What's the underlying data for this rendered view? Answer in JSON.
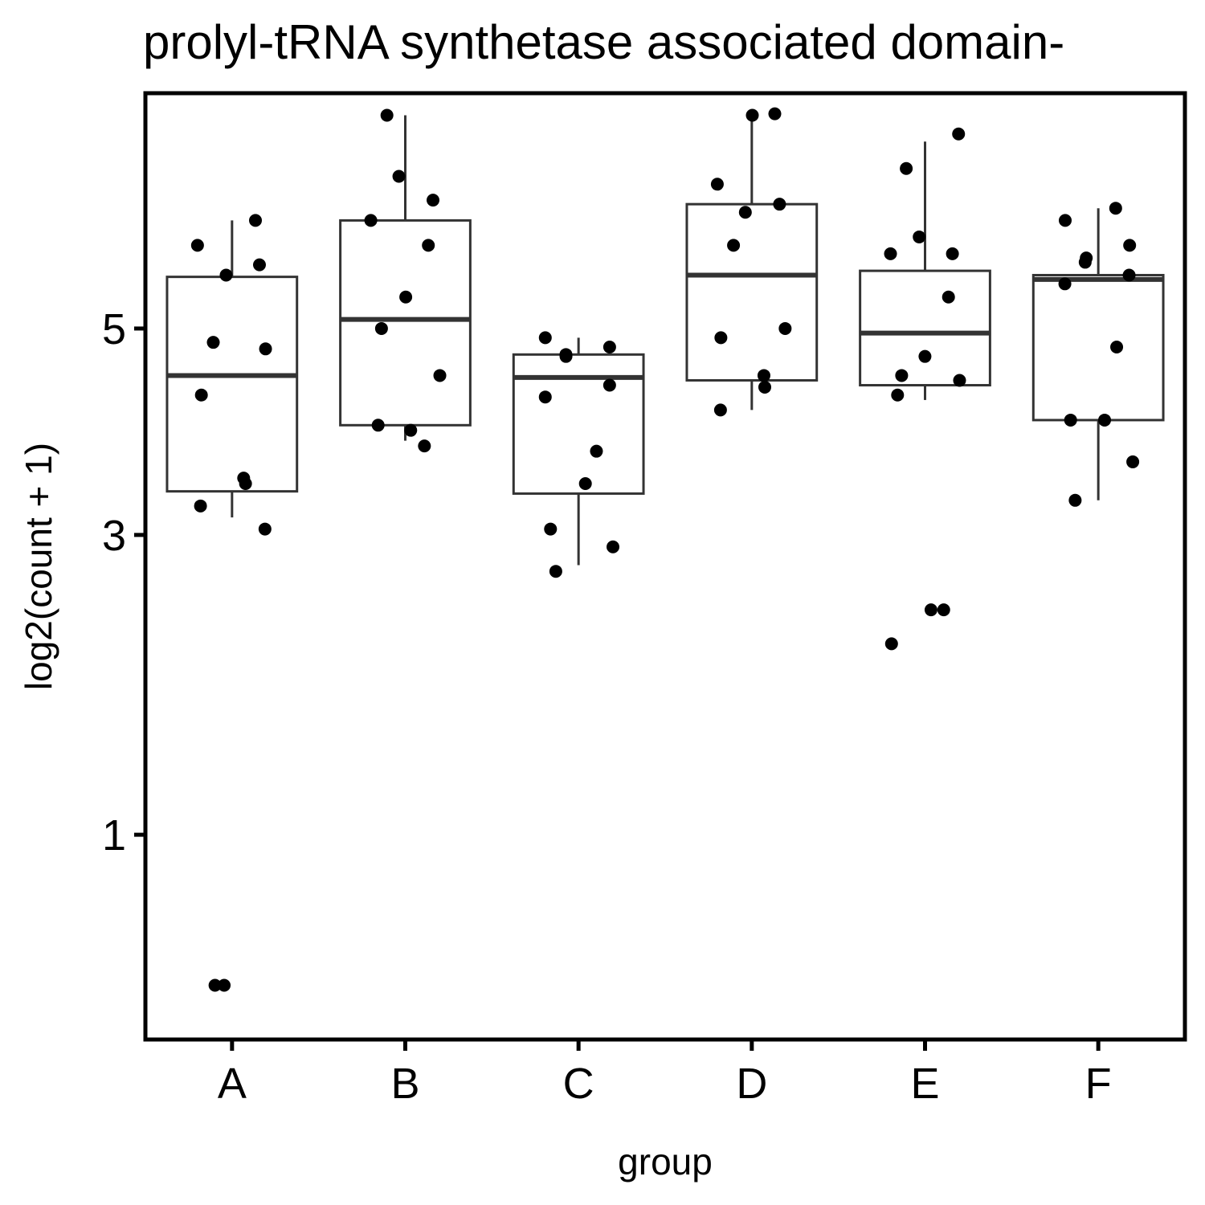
{
  "chart_data": {
    "type": "box",
    "title": "prolyl-tRNA synthetase associated domain-",
    "xlabel": "group",
    "ylabel": "log2(count + 1)",
    "y_scale": "sqrt",
    "ylim": [
      0.25,
      7.9
    ],
    "y_ticks": [
      1,
      3,
      5
    ],
    "categories": [
      "A",
      "B",
      "C",
      "D",
      "E",
      "F"
    ],
    "boxes": [
      {
        "group": "A",
        "lower_whisker": 3.15,
        "q1": 3.38,
        "median": 4.5,
        "q3": 5.58,
        "upper_whisker": 6.25
      },
      {
        "group": "B",
        "lower_whisker": 3.85,
        "q1": 4.0,
        "median": 5.1,
        "q3": 6.25,
        "upper_whisker": 7.6
      },
      {
        "group": "C",
        "lower_whisker": 2.75,
        "q1": 3.36,
        "median": 4.48,
        "q3": 4.72,
        "upper_whisker": 4.9
      },
      {
        "group": "D",
        "lower_whisker": 4.15,
        "q1": 4.45,
        "median": 5.6,
        "q3": 6.45,
        "upper_whisker": 7.6
      },
      {
        "group": "E",
        "lower_whisker": 4.25,
        "q1": 4.4,
        "median": 4.95,
        "q3": 5.65,
        "upper_whisker": 7.25
      },
      {
        "group": "F",
        "lower_whisker": 3.3,
        "q1": 4.05,
        "median": 5.55,
        "q3": 5.6,
        "upper_whisker": 6.4
      }
    ],
    "points": [
      {
        "group": "A",
        "values": [
          6.25,
          5.95,
          5.72,
          5.6,
          4.85,
          4.78,
          4.3,
          3.5,
          3.45,
          3.25,
          3.05,
          0.4,
          0.4
        ]
      },
      {
        "group": "B",
        "values": [
          7.6,
          6.8,
          6.5,
          6.25,
          5.95,
          5.35,
          5.0,
          4.5,
          4.0,
          3.95,
          3.8
        ]
      },
      {
        "group": "C",
        "values": [
          4.9,
          4.8,
          4.72,
          4.7,
          4.4,
          4.28,
          3.75,
          3.45,
          3.05,
          2.9,
          2.7
        ]
      },
      {
        "group": "D",
        "values": [
          7.6,
          7.62,
          6.7,
          6.45,
          6.35,
          5.95,
          5.0,
          4.9,
          4.5,
          4.38,
          4.15
        ]
      },
      {
        "group": "E",
        "values": [
          7.35,
          6.9,
          6.05,
          5.85,
          5.85,
          5.35,
          4.7,
          4.5,
          4.45,
          4.3,
          2.4,
          2.4,
          2.15
        ]
      },
      {
        "group": "F",
        "values": [
          6.4,
          6.25,
          5.95,
          5.75,
          5.8,
          5.6,
          5.5,
          4.8,
          4.05,
          4.05,
          3.65,
          3.3
        ]
      }
    ],
    "grid": false,
    "legend": "none"
  }
}
